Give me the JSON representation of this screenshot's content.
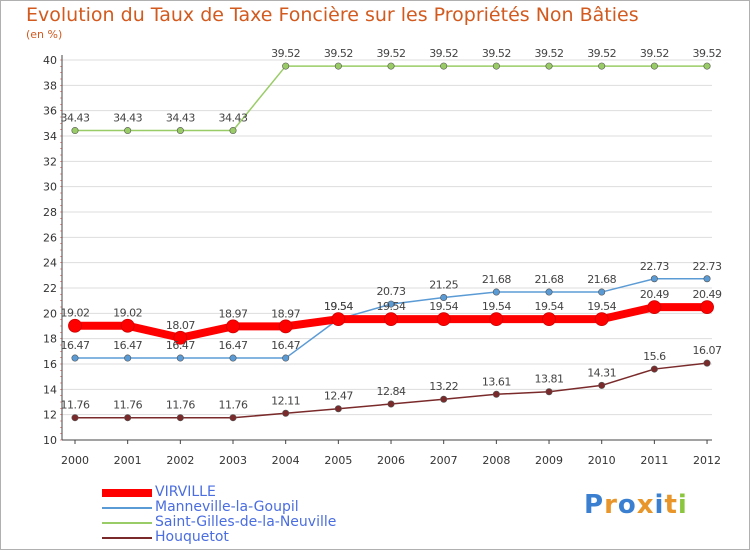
{
  "chart_data": {
    "type": "line",
    "title": "Evolution du Taux de Taxe Foncière sur les Propriétés Non Bâties",
    "subtitle": "(en %)",
    "categories": [
      "2000",
      "2001",
      "2002",
      "2003",
      "2004",
      "2005",
      "2006",
      "2007",
      "2008",
      "2009",
      "2010",
      "2011",
      "2012"
    ],
    "ylim": [
      10,
      40
    ],
    "yticks": [
      10,
      12,
      14,
      16,
      18,
      20,
      22,
      24,
      26,
      28,
      30,
      32,
      34,
      36,
      38,
      40
    ],
    "grid": "horizontal",
    "legend_position": "bottom-left",
    "series": [
      {
        "name": "VIRVILLE",
        "color": "#ff0000",
        "values": [
          19.02,
          19.02,
          18.07,
          18.97,
          18.97,
          19.54,
          19.54,
          19.54,
          19.54,
          19.54,
          19.54,
          20.49,
          20.49
        ],
        "labels": [
          "19.02",
          "19.02",
          "18.07",
          "18.97",
          "18.97",
          "19.54",
          "19.54",
          "19.54",
          "19.54",
          "19.54",
          "19.54",
          "20.49",
          "20.49"
        ]
      },
      {
        "name": "Manneville-la-Goupil",
        "color": "#5b9bd5",
        "values": [
          16.47,
          16.47,
          16.47,
          16.47,
          16.47,
          19.54,
          20.73,
          21.25,
          21.68,
          21.68,
          21.68,
          22.73,
          22.73
        ],
        "labels": [
          "16.47",
          "16.47",
          "16.47",
          "16.47",
          "16.47",
          "19.54",
          "20.73",
          "21.25",
          "21.68",
          "21.68",
          "21.68",
          "22.73",
          "22.73"
        ]
      },
      {
        "name": "Saint-Gilles-de-la-Neuville",
        "color": "#99cc66",
        "values": [
          34.43,
          34.43,
          34.43,
          34.43,
          39.52,
          39.52,
          39.52,
          39.52,
          39.52,
          39.52,
          39.52,
          39.52,
          39.52
        ],
        "labels": [
          "34.43",
          "34.43",
          "34.43",
          "34.43",
          "39.52",
          "39.52",
          "39.52",
          "39.52",
          "39.52",
          "39.52",
          "39.52",
          "39.52",
          "39.52"
        ]
      },
      {
        "name": "Houquetot",
        "color": "#7a2a2a",
        "values": [
          11.76,
          11.76,
          11.76,
          11.76,
          12.11,
          12.47,
          12.84,
          13.22,
          13.61,
          13.81,
          14.31,
          15.6,
          16.07
        ],
        "labels": [
          "11.76",
          "11.76",
          "11.76",
          "11.76",
          "12.11",
          "12.47",
          "12.84",
          "13.22",
          "13.61",
          "13.81",
          "14.31",
          "15.6",
          "16.07"
        ]
      }
    ]
  },
  "logo": {
    "text": "Proxiti",
    "letter_colors": [
      "#3a7fd0",
      "#e8962a",
      "#3a7fd0",
      "#e8962a",
      "#3a7fd0",
      "#e8962a",
      "#8cc63f"
    ]
  }
}
